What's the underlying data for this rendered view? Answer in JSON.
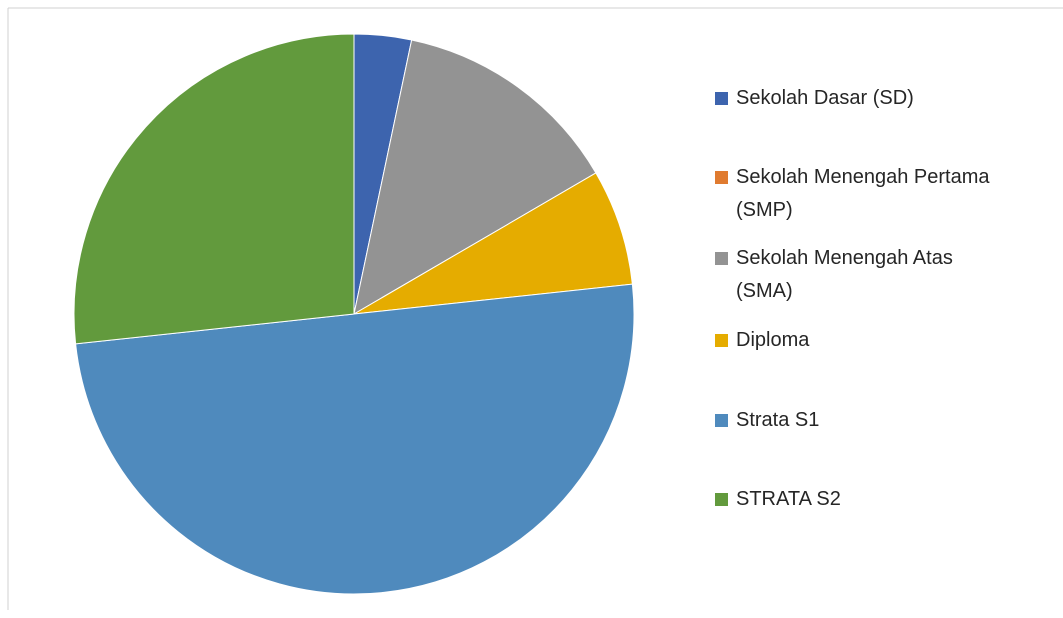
{
  "chart_data": {
    "type": "pie",
    "categories": [
      "Sekolah Dasar (SD)",
      "Sekolah Menengah Pertama (SMP)",
      "Sekolah Menengah Atas (SMA)",
      "Diploma",
      "Strata S1",
      "STRATA S2"
    ],
    "values": [
      3.3,
      0,
      13.3,
      6.7,
      50,
      26.7
    ],
    "colors": [
      "#3d64ae",
      "#e07b30",
      "#939393",
      "#e5ac00",
      "#4f8abd",
      "#629a3d"
    ],
    "legend": "right"
  }
}
